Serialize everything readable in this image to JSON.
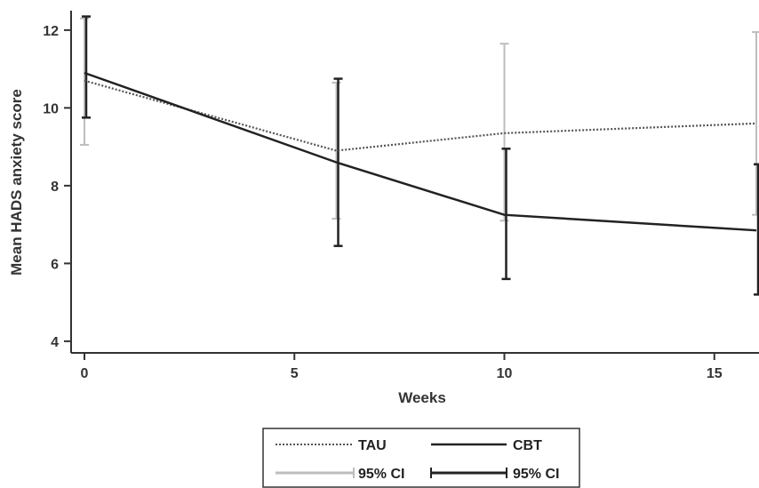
{
  "chart_data": {
    "type": "line",
    "title": "",
    "xlabel": "Weeks",
    "ylabel": "Mean HADS anxiety score",
    "xlim": [
      0,
      16
    ],
    "ylim": [
      3.7,
      12.5
    ],
    "xticks": [
      0,
      5,
      10,
      15
    ],
    "yticks": [
      4,
      6,
      8,
      10,
      12
    ],
    "x": [
      0,
      6,
      10,
      16
    ],
    "series": [
      {
        "name": "TAU",
        "style": "dotted",
        "color": "#555555",
        "values": [
          10.7,
          8.9,
          9.35,
          9.6
        ],
        "ci_lower": [
          9.05,
          7.15,
          7.1,
          7.25
        ],
        "ci_upper": [
          12.3,
          10.65,
          11.65,
          11.95
        ],
        "ci_name": "95% CI",
        "ci_color": "#bdbdbd"
      },
      {
        "name": "CBT",
        "style": "solid",
        "color": "#222222",
        "values": [
          10.9,
          8.6,
          7.25,
          6.85
        ],
        "ci_lower": [
          9.75,
          6.45,
          5.6,
          5.2
        ],
        "ci_upper": [
          12.35,
          10.75,
          8.95,
          8.55
        ],
        "ci_name": "95% CI",
        "ci_color": "#222222"
      }
    ],
    "grid": false,
    "legend_position": "bottom-center"
  }
}
